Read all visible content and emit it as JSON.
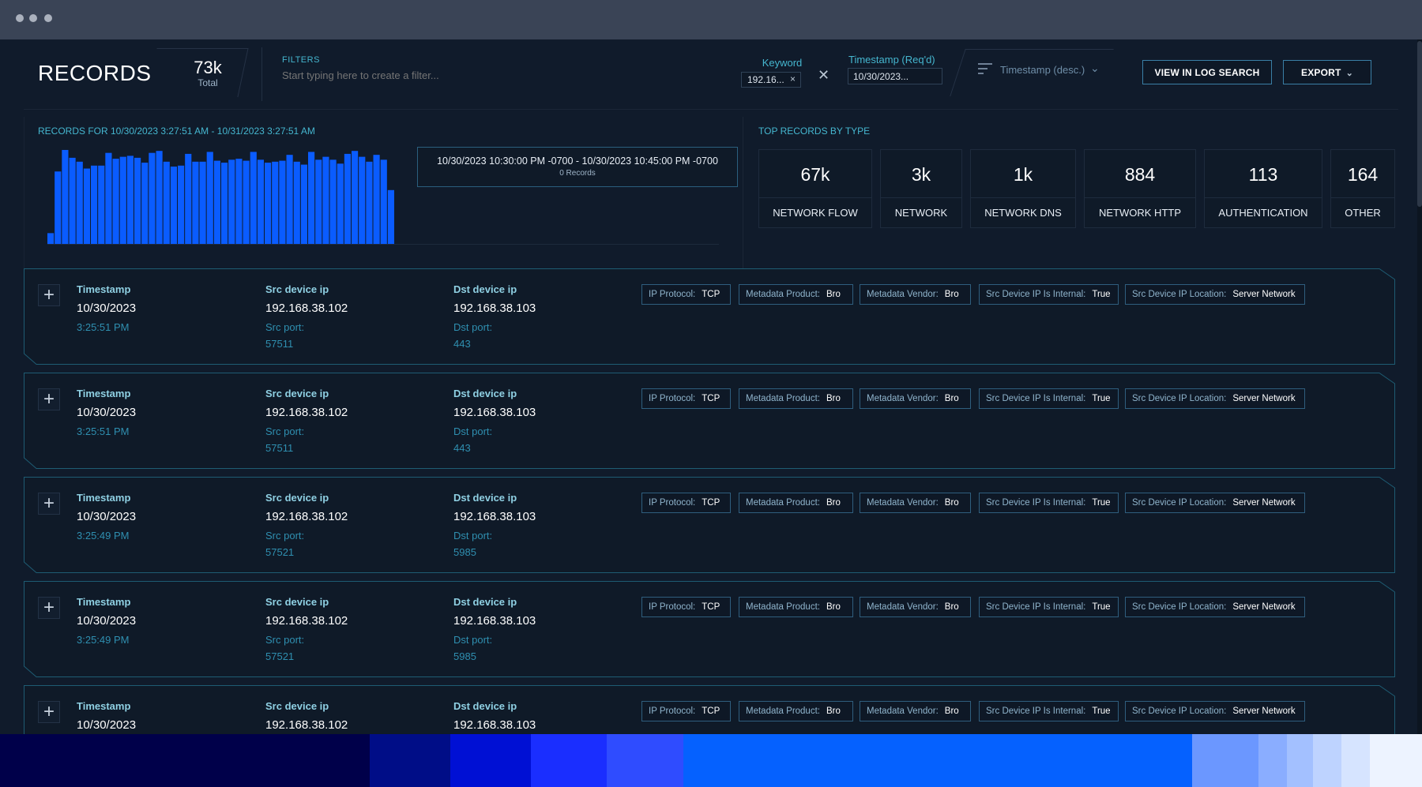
{
  "header": {
    "title": "RECORDS",
    "total_value": "73k",
    "total_label": "Total",
    "filters_label": "FILTERS",
    "filters_placeholder": "Start typing here to create a filter...",
    "keyword_label": "Keyword",
    "keyword_chip": "192.16...",
    "timestamp_label": "Timestamp (Req'd)",
    "timestamp_value": "10/30/2023...",
    "sort_label": "Timestamp (desc.)",
    "view_log_label": "VIEW IN LOG SEARCH",
    "export_label": "EXPORT"
  },
  "histogram": {
    "title": "RECORDS FOR 10/30/2023 3:27:51 AM - 10/31/2023 3:27:51 AM",
    "bar_color": "#0a5cff",
    "relative_heights": [
      0.11,
      0.74,
      0.96,
      0.88,
      0.84,
      0.77,
      0.8,
      0.8,
      0.93,
      0.87,
      0.89,
      0.9,
      0.88,
      0.83,
      0.93,
      0.95,
      0.84,
      0.79,
      0.8,
      0.92,
      0.84,
      0.84,
      0.94,
      0.85,
      0.83,
      0.86,
      0.87,
      0.85,
      0.94,
      0.86,
      0.83,
      0.84,
      0.85,
      0.91,
      0.84,
      0.81,
      0.94,
      0.86,
      0.89,
      0.86,
      0.82,
      0.92,
      0.95,
      0.89,
      0.84,
      0.91,
      0.86,
      0.55
    ],
    "tooltip_range": "10/30/2023 10:30:00 PM -0700 - 10/30/2023 10:45:00 PM -0700",
    "tooltip_count": "0 Records"
  },
  "top_types": {
    "title": "TOP RECORDS BY TYPE",
    "items": [
      {
        "value": "67k",
        "label": "NETWORK FLOW"
      },
      {
        "value": "3k",
        "label": "NETWORK"
      },
      {
        "value": "1k",
        "label": "NETWORK DNS"
      },
      {
        "value": "884",
        "label": "NETWORK HTTP"
      },
      {
        "value": "113",
        "label": "AUTHENTICATION"
      },
      {
        "value": "164",
        "label": "OTHER"
      }
    ]
  },
  "records": {
    "labels": {
      "timestamp": "Timestamp",
      "src_ip": "Src device ip",
      "dst_ip": "Dst device ip",
      "src_port": "Src port:",
      "dst_port": "Dst port:"
    },
    "tag_keys": [
      "IP Protocol:",
      "Metadata Product:",
      "Metadata Vendor:",
      "Src Device IP Is Internal:",
      "Src Device IP Location:"
    ],
    "rows": [
      {
        "date": "10/30/2023",
        "time": "3:25:51 PM",
        "src_ip": "192.168.38.102",
        "src_port": "57511",
        "dst_ip": "192.168.38.103",
        "dst_port": "443",
        "tag_values": [
          "TCP",
          "Bro",
          "Bro",
          "True",
          "Server Network"
        ]
      },
      {
        "date": "10/30/2023",
        "time": "3:25:51 PM",
        "src_ip": "192.168.38.102",
        "src_port": "57511",
        "dst_ip": "192.168.38.103",
        "dst_port": "443",
        "tag_values": [
          "TCP",
          "Bro",
          "Bro",
          "True",
          "Server Network"
        ]
      },
      {
        "date": "10/30/2023",
        "time": "3:25:49 PM",
        "src_ip": "192.168.38.102",
        "src_port": "57521",
        "dst_ip": "192.168.38.103",
        "dst_port": "5985",
        "tag_values": [
          "TCP",
          "Bro",
          "Bro",
          "True",
          "Server Network"
        ]
      },
      {
        "date": "10/30/2023",
        "time": "3:25:49 PM",
        "src_ip": "192.168.38.102",
        "src_port": "57521",
        "dst_ip": "192.168.38.103",
        "dst_port": "5985",
        "tag_values": [
          "TCP",
          "Bro",
          "Bro",
          "True",
          "Server Network"
        ]
      },
      {
        "date": "10/30/2023",
        "time": "",
        "src_ip": "192.168.38.102",
        "src_port": "",
        "dst_ip": "192.168.38.103",
        "dst_port": "",
        "tag_values": [
          "TCP",
          "Bro",
          "Bro",
          "True",
          "Server Network"
        ]
      }
    ]
  },
  "colors": {
    "background": "#101b2b",
    "accent_cyan": "#45b6cf",
    "gradient": [
      "#00004a",
      "#000d87",
      "#0010d4",
      "#1a2eff",
      "#2f4cff",
      "#0561ff",
      "#6b97ff",
      "#8aadff",
      "#a3c0ff",
      "#bed3ff",
      "#d6e4ff",
      "#edf3ff"
    ]
  }
}
